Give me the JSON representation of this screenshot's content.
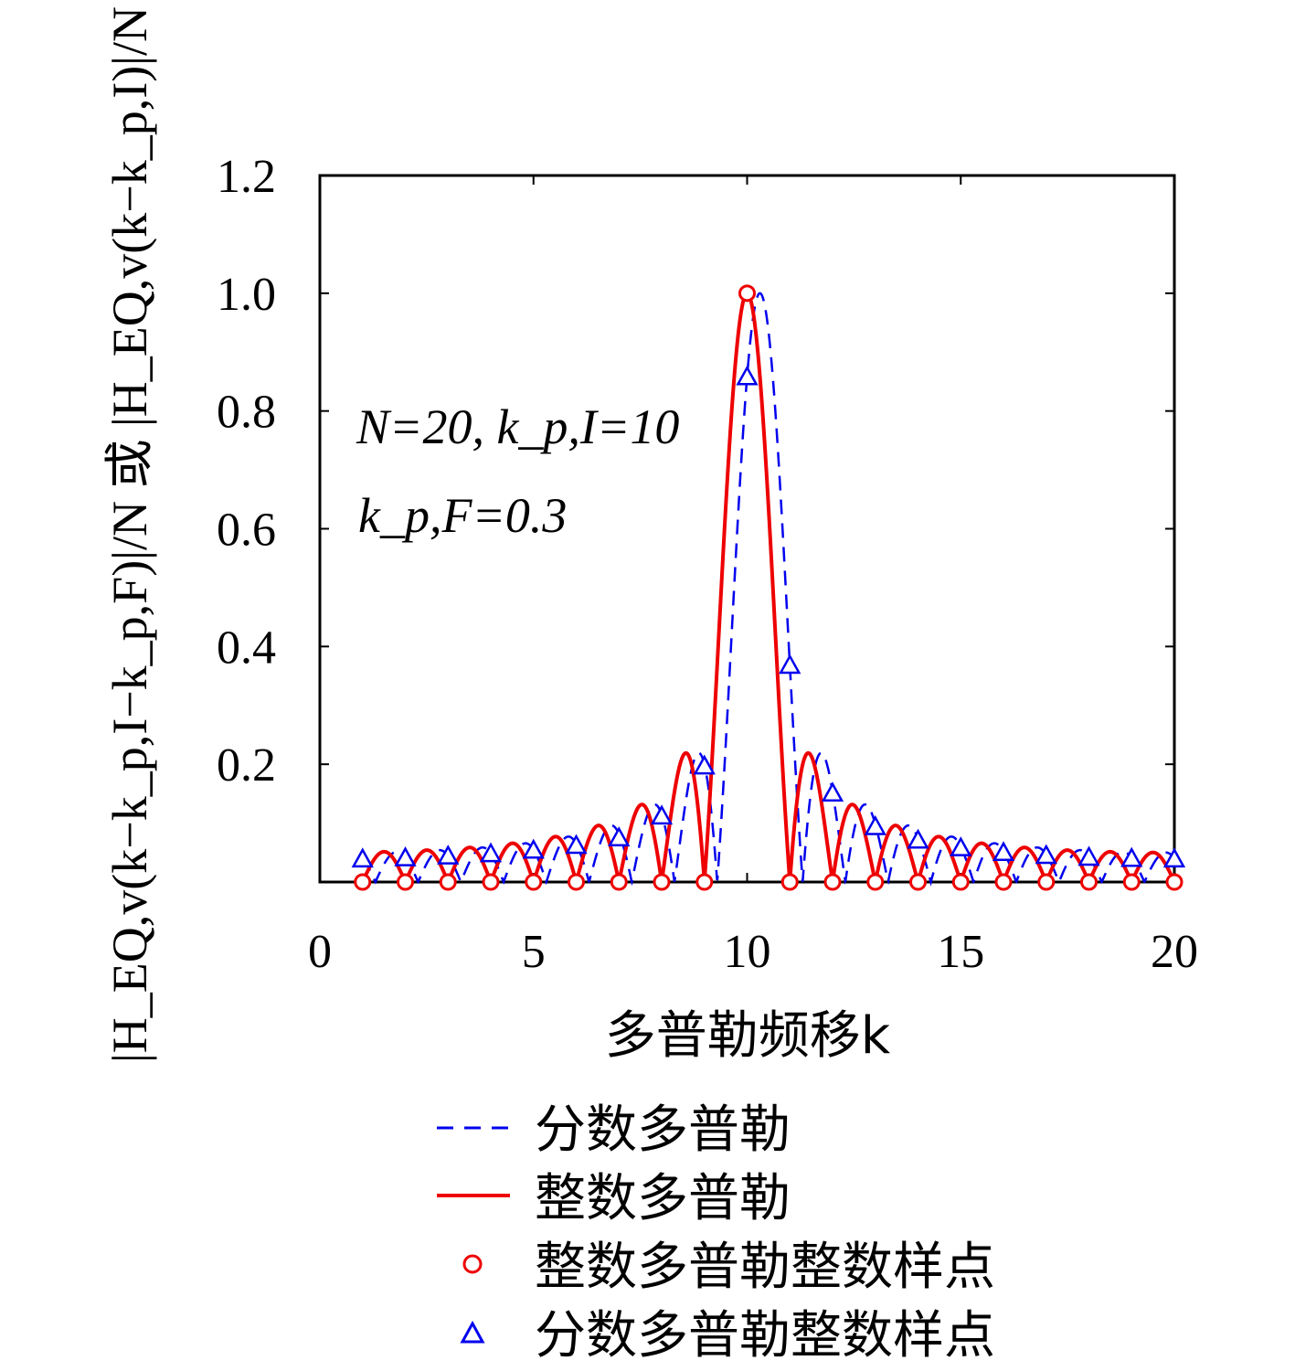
{
  "chart_data": {
    "type": "line",
    "title": "",
    "xlabel": "多普勒频移k",
    "ylabel": "|H_EQ,v(k−k_p,I−k_p,F)|/N 或 |H_EQ,v(k−k_p,I)|/N",
    "xlim": [
      0,
      20
    ],
    "ylim": [
      0,
      1.2
    ],
    "xticks": [
      "0",
      "5",
      "10",
      "15",
      "20"
    ],
    "yticks": [
      "0.2",
      "0.4",
      "0.6",
      "0.8",
      "1.0",
      "1.2"
    ],
    "grid": false,
    "legend_position": "below",
    "annotation": {
      "line1": "N=20, k_p,I=10",
      "line2": "k_p,F=0.3"
    },
    "params": {
      "N": 20,
      "kpI": 10,
      "kpF": 0.3
    },
    "series": [
      {
        "name": "分数多普勒",
        "kind": "line",
        "style": "dashed",
        "color": "#0000ee",
        "formula": "|sin(pi*(k-10.3))/(N*sin(pi*(k-10.3)/N))|",
        "x_range": [
          1,
          20
        ]
      },
      {
        "name": "整数多普勒",
        "kind": "line",
        "style": "solid",
        "color": "#ee0000",
        "formula": "|sin(pi*(k-10))/(N*sin(pi*(k-10)/N))|",
        "x_range": [
          1,
          20
        ]
      },
      {
        "name": "整数多普勒整数样点",
        "kind": "marker",
        "marker": "circle",
        "color": "#ee0000",
        "x": [
          1,
          2,
          3,
          4,
          5,
          6,
          7,
          8,
          9,
          10,
          11,
          12,
          13,
          14,
          15,
          16,
          17,
          18,
          19,
          20
        ],
        "values": [
          0,
          0,
          0,
          0,
          0,
          0,
          0,
          0,
          0,
          1.0,
          0,
          0,
          0,
          0,
          0,
          0,
          0,
          0,
          0,
          0
        ]
      },
      {
        "name": "分数多普勒整数样点",
        "kind": "marker",
        "marker": "triangle",
        "color": "#0000ee",
        "x": [
          1,
          2,
          3,
          4,
          5,
          6,
          7,
          8,
          9,
          10,
          11,
          12,
          13,
          14,
          15,
          16,
          17,
          18,
          19,
          20
        ],
        "values": [
          0.039,
          0.041,
          0.044,
          0.048,
          0.054,
          0.062,
          0.075,
          0.112,
          0.197,
          0.858,
          0.368,
          0.151,
          0.094,
          0.071,
          0.058,
          0.05,
          0.045,
          0.042,
          0.04,
          0.039
        ]
      }
    ]
  }
}
